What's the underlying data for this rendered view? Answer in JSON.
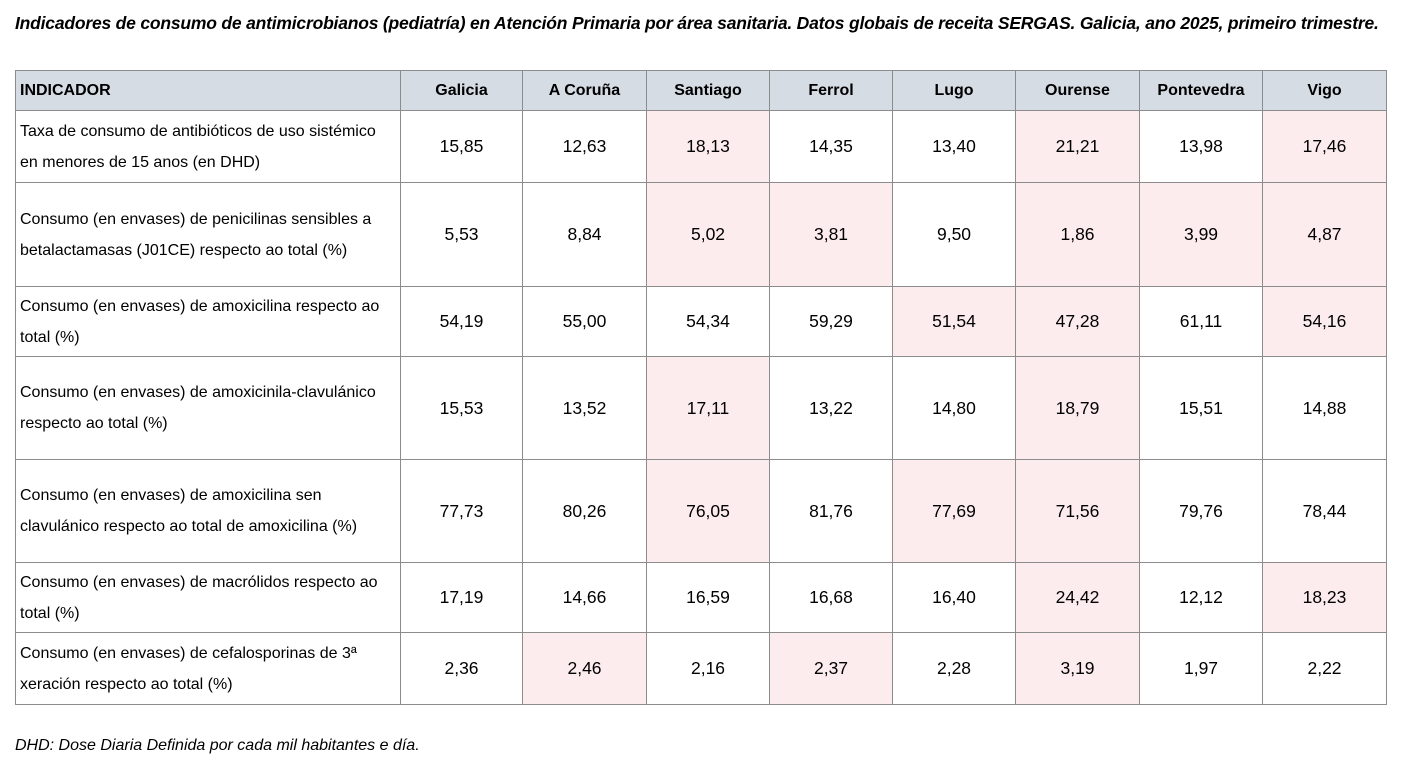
{
  "title": "Indicadores de consumo de antimicrobianos (pediatría) en Atención Primaria por área sanitaria. Datos globais de receita SERGAS. Galicia, ano 2025, primeiro trimestre.",
  "table": {
    "headers": [
      "INDICADOR",
      "Galicia",
      "A Coruña",
      "Santiago",
      "Ferrol",
      "Lugo",
      "Ourense",
      "Pontevedra",
      "Vigo"
    ],
    "highlight_color": "#fdeced",
    "header_color": "#d6dce4",
    "rows": [
      {
        "indicator": "Taxa de consumo de antibióticos de uso sistémico en menores de 15 anos (en DHD)",
        "values": [
          "15,85",
          "12,63",
          "18,13",
          "14,35",
          "13,40",
          "21,21",
          "13,98",
          "17,46"
        ],
        "highlighted": [
          false,
          false,
          true,
          false,
          false,
          true,
          false,
          true
        ]
      },
      {
        "indicator": "Consumo (en envases) de penicilinas sensibles a betalactamasas (J01CE) respecto ao total (%)",
        "values": [
          "5,53",
          "8,84",
          "5,02",
          "3,81",
          "9,50",
          "1,86",
          "3,99",
          "4,87"
        ],
        "highlighted": [
          false,
          false,
          true,
          true,
          false,
          true,
          true,
          true
        ]
      },
      {
        "indicator": "Consumo (en envases) de amoxicilina respecto ao total (%)",
        "values": [
          "54,19",
          "55,00",
          "54,34",
          "59,29",
          "51,54",
          "47,28",
          "61,11",
          "54,16"
        ],
        "highlighted": [
          false,
          false,
          false,
          false,
          true,
          true,
          false,
          true
        ]
      },
      {
        "indicator": "Consumo (en envases) de amoxicinila-clavulánico respecto ao total (%)",
        "values": [
          "15,53",
          "13,52",
          "17,11",
          "13,22",
          "14,80",
          "18,79",
          "15,51",
          "14,88"
        ],
        "highlighted": [
          false,
          false,
          true,
          false,
          false,
          true,
          false,
          false
        ]
      },
      {
        "indicator": "Consumo (en envases) de amoxicilina sen clavulánico respecto ao total de amoxicilina (%)",
        "values": [
          "77,73",
          "80,26",
          "76,05",
          "81,76",
          "77,69",
          "71,56",
          "79,76",
          "78,44"
        ],
        "highlighted": [
          false,
          false,
          true,
          false,
          true,
          true,
          false,
          false
        ]
      },
      {
        "indicator": "Consumo (en envases) de macrólidos respecto ao total (%)",
        "values": [
          "17,19",
          "14,66",
          "16,59",
          "16,68",
          "16,40",
          "24,42",
          "12,12",
          "18,23"
        ],
        "highlighted": [
          false,
          false,
          false,
          false,
          false,
          true,
          false,
          true
        ]
      },
      {
        "indicator": "Consumo (en envases) de cefalosporinas de 3ª xeración respecto ao total (%)",
        "values": [
          "2,36",
          "2,46",
          "2,16",
          "2,37",
          "2,28",
          "3,19",
          "1,97",
          "2,22"
        ],
        "highlighted": [
          false,
          true,
          false,
          true,
          false,
          true,
          false,
          false
        ]
      }
    ]
  },
  "footnote": "DHD: Dose Diaria Definida por cada mil habitantes e día."
}
